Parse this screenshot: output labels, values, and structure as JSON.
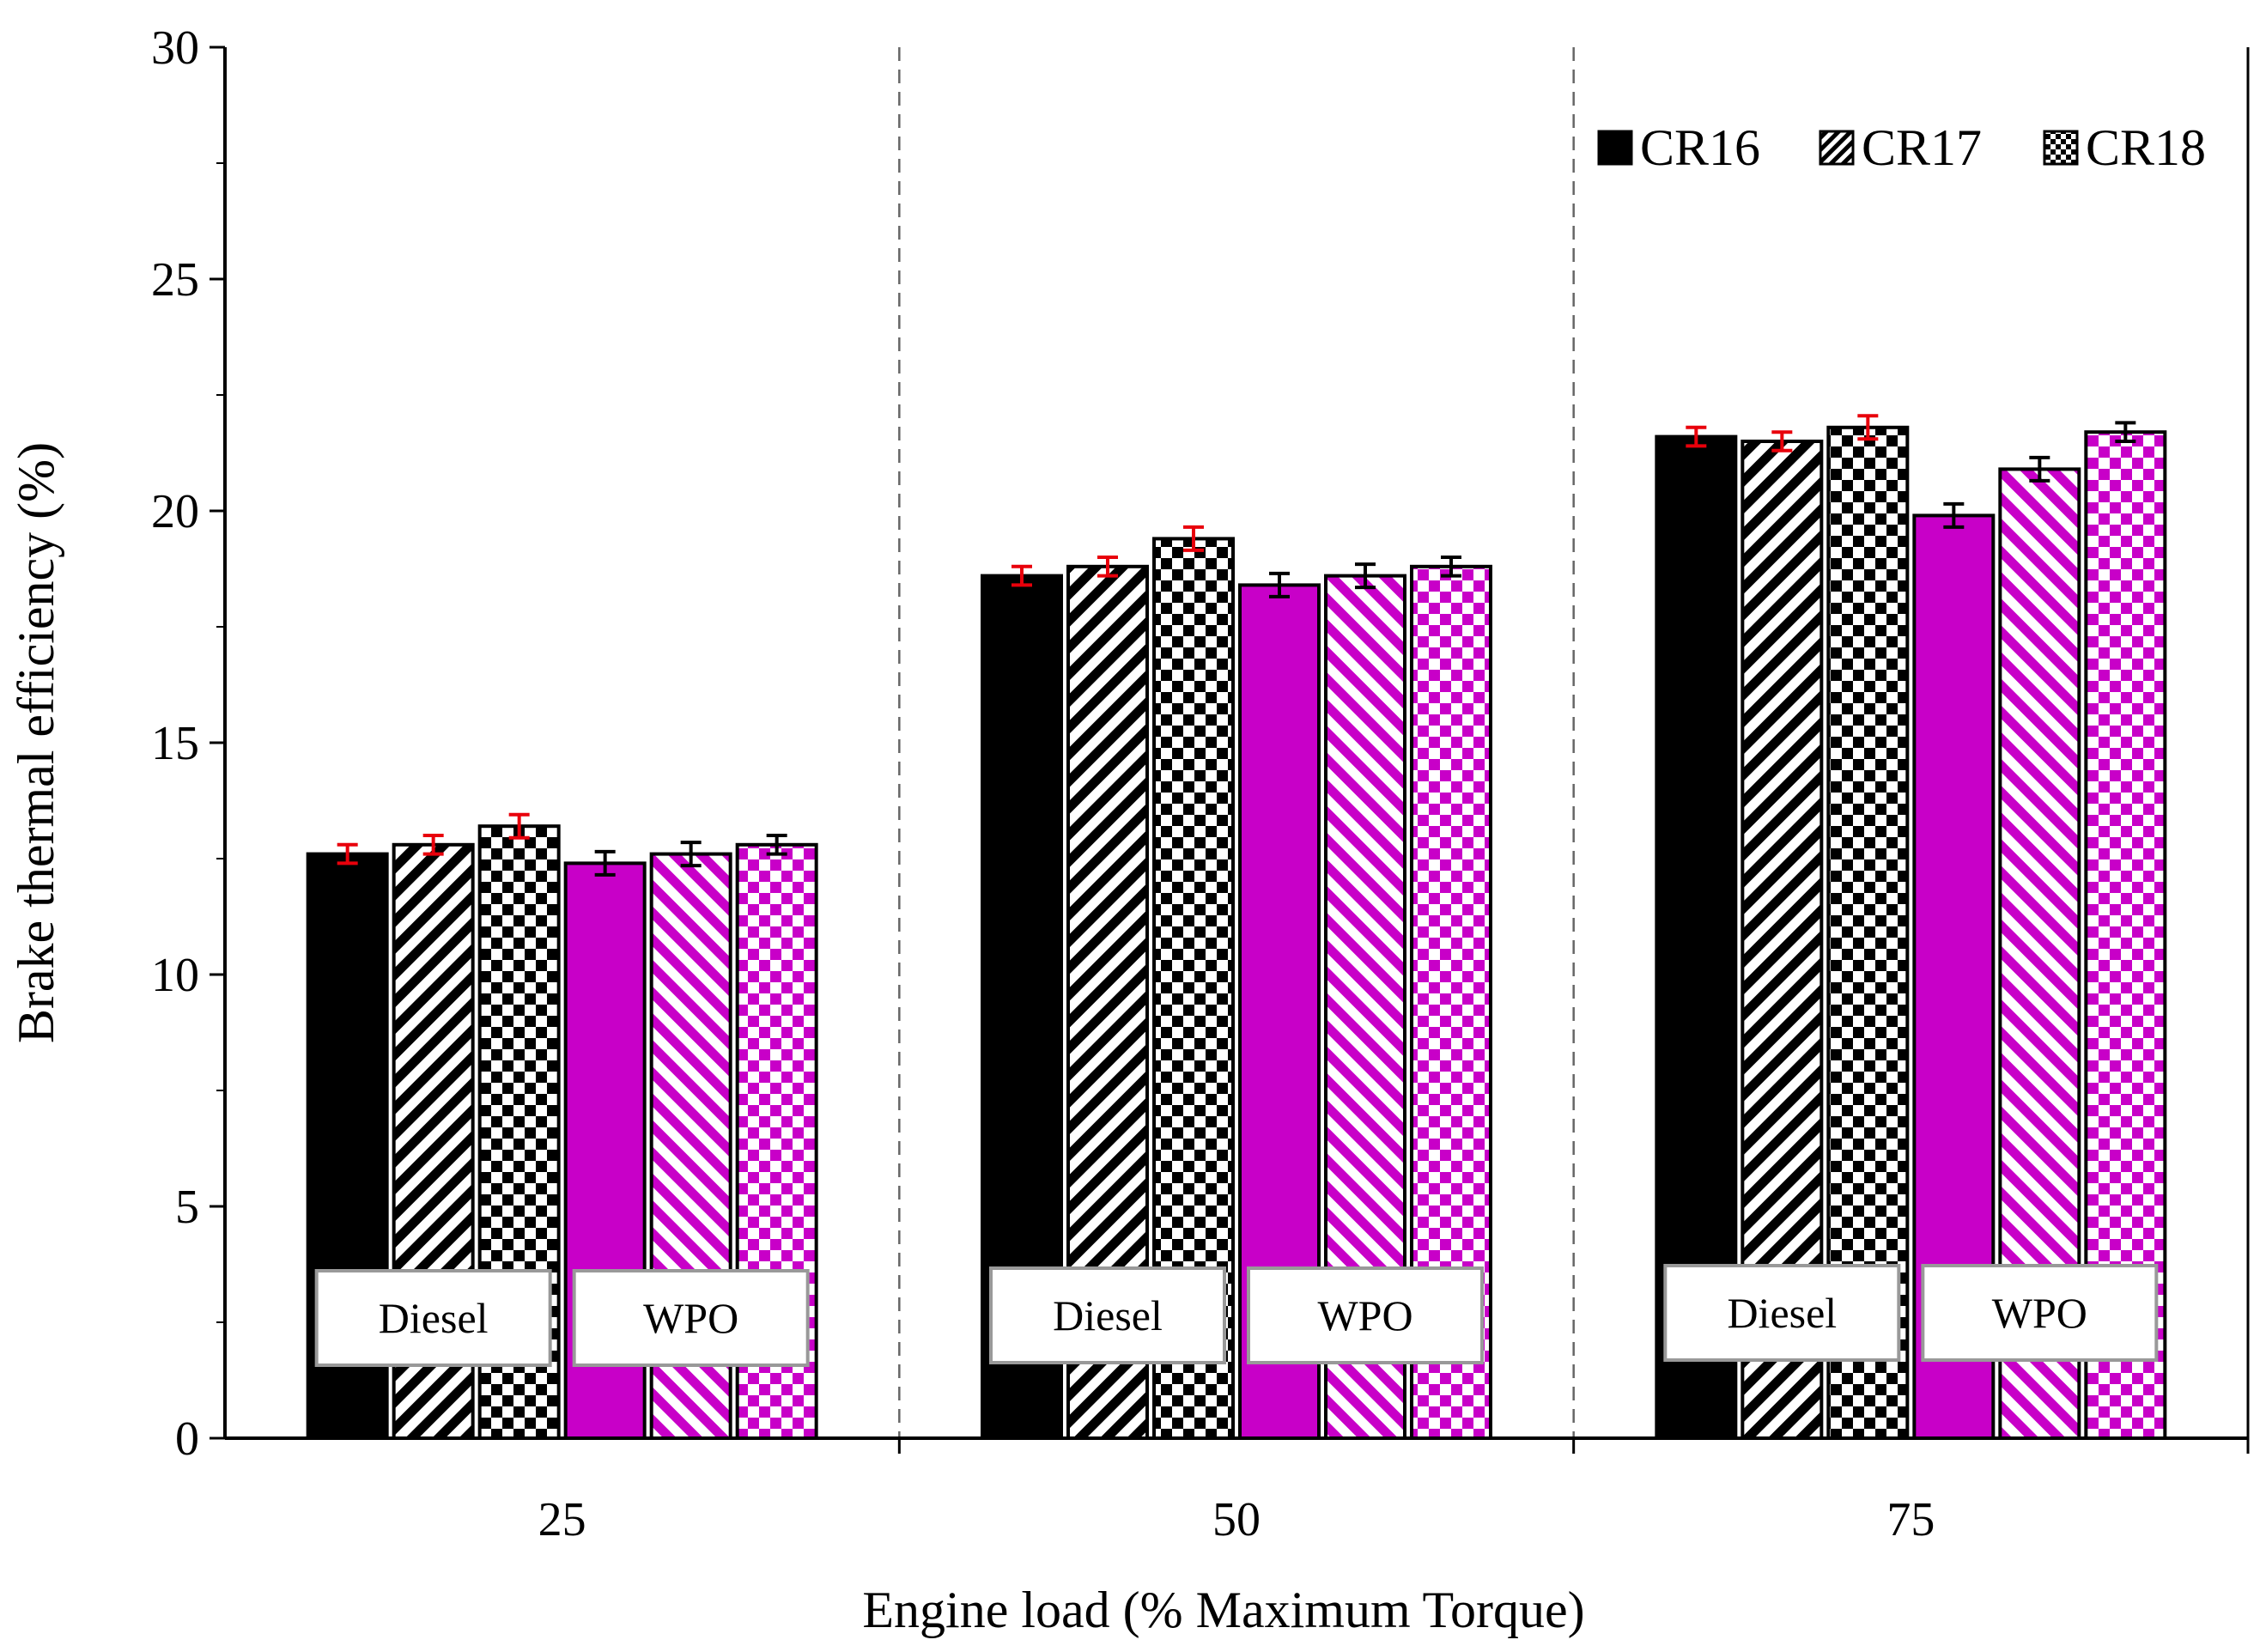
{
  "chart_data": {
    "type": "bar",
    "title": "",
    "xlabel": "Engine load (% Maximum Torque)",
    "ylabel": "Brake thermal efficiency (%)",
    "ylim": [
      0,
      30
    ],
    "yticks": [
      "0",
      "5",
      "10",
      "15",
      "20",
      "25",
      "30"
    ],
    "categories": [
      "25",
      "50",
      "75"
    ],
    "series": [
      {
        "name": "CR16",
        "fuel": "Diesel",
        "pattern": "solid",
        "color": "#000000",
        "error_color": "#e8000b",
        "values": [
          12.6,
          18.6,
          21.6
        ],
        "errors": [
          0.2,
          0.2,
          0.2
        ]
      },
      {
        "name": "CR17",
        "fuel": "Diesel",
        "pattern": "diagonal",
        "color": "#000000",
        "error_color": "#e8000b",
        "values": [
          12.8,
          18.8,
          21.5
        ],
        "errors": [
          0.2,
          0.2,
          0.2
        ]
      },
      {
        "name": "CR18",
        "fuel": "Diesel",
        "pattern": "checker",
        "color": "#000000",
        "error_color": "#e8000b",
        "values": [
          13.2,
          19.4,
          21.8
        ],
        "errors": [
          0.25,
          0.25,
          0.25
        ]
      },
      {
        "name": "CR16",
        "fuel": "WPO",
        "pattern": "solid",
        "color": "#c800c8",
        "error_color": "#000000",
        "values": [
          12.4,
          18.4,
          19.9
        ],
        "errors": [
          0.25,
          0.25,
          0.25
        ]
      },
      {
        "name": "CR17",
        "fuel": "WPO",
        "pattern": "diagonal",
        "color": "#c800c8",
        "error_color": "#000000",
        "values": [
          12.6,
          18.6,
          20.9
        ],
        "errors": [
          0.25,
          0.25,
          0.25
        ]
      },
      {
        "name": "CR18",
        "fuel": "WPO",
        "pattern": "checker",
        "color": "#c800c8",
        "error_color": "#000000",
        "values": [
          12.8,
          18.8,
          21.7
        ],
        "errors": [
          0.2,
          0.2,
          0.2
        ]
      }
    ],
    "fuel_labels": [
      "Diesel",
      "WPO"
    ],
    "legend": {
      "placement": "top-right",
      "entries": [
        {
          "label": "CR16",
          "pattern": "solid"
        },
        {
          "label": "CR17",
          "pattern": "diagonal"
        },
        {
          "label": "CR18",
          "pattern": "checker"
        }
      ]
    },
    "group_separators": "dashed",
    "grid": false
  }
}
